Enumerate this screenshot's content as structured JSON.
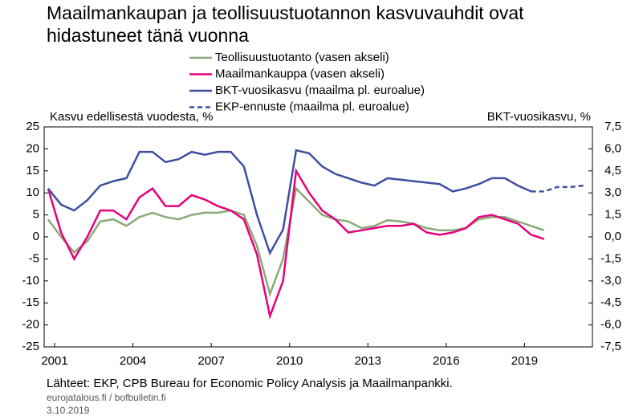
{
  "chart_data": {
    "type": "line",
    "title": "Maailmankaupan ja teollisuustuotannon kasvuvauhdit ovat hidastuneet tänä vuonna",
    "ylabel": "Kasvu edellisestä vuodesta, %",
    "y2label": "BKT-vuosikasvu, %",
    "source": "Lähteet: EKP, CPB Bureau for Economic Policy Analysis ja Maailmanpankki.",
    "site": "eurojatalous.fi  / bofbulletin.fi",
    "date": "3.10.2019",
    "x": [
      2000.75,
      2001.25,
      2001.75,
      2002.25,
      2002.75,
      2003.25,
      2003.75,
      2004.25,
      2004.75,
      2005.25,
      2005.75,
      2006.25,
      2006.75,
      2007.25,
      2007.75,
      2008.25,
      2008.75,
      2009.25,
      2009.75,
      2010.25,
      2010.75,
      2011.25,
      2011.75,
      2012.25,
      2012.75,
      2013.25,
      2013.75,
      2014.25,
      2014.75,
      2015.25,
      2015.75,
      2016.25,
      2016.75,
      2017.25,
      2017.75,
      2018.25,
      2018.75,
      2019.25,
      2019.75,
      2020.25,
      2020.75,
      2021.25
    ],
    "xlim": [
      2000.6,
      2021.6
    ],
    "xticks": [
      2001,
      2004,
      2007,
      2010,
      2013,
      2016,
      2019
    ],
    "ylim": [
      -25,
      25
    ],
    "yticks": [
      25,
      20,
      15,
      10,
      5,
      0,
      -5,
      -10,
      -15,
      -20,
      -25
    ],
    "y2lim": [
      -7.5,
      7.5
    ],
    "y2ticks": [
      {
        "value": 7.5,
        "label": "7,5"
      },
      {
        "value": 6,
        "label": "6,0"
      },
      {
        "value": 4.5,
        "label": "4,5"
      },
      {
        "value": 3,
        "label": "3,0"
      },
      {
        "value": 1.5,
        "label": "1,5"
      },
      {
        "value": 0,
        "label": "0,0"
      },
      {
        "value": -1.5,
        "label": "-1,5"
      },
      {
        "value": -3,
        "label": "-3,0"
      },
      {
        "value": -4.5,
        "label": "-4,5"
      },
      {
        "value": -6,
        "label": "-6,0"
      },
      {
        "value": -7.5,
        "label": "-7,5"
      }
    ],
    "series": [
      {
        "name": "Teollisuustuotanto (vasen akseli)",
        "color": "#8aab78",
        "axis": "y",
        "values": [
          4,
          0,
          -3.5,
          -1,
          3.5,
          4,
          2.5,
          4.5,
          5.5,
          4.5,
          4,
          5,
          5.5,
          5.5,
          6,
          5,
          -2,
          -13,
          -5,
          11,
          8,
          5,
          4,
          3.5,
          2,
          2.5,
          3.8,
          3.5,
          3,
          2,
          1.5,
          1.5,
          2,
          4,
          4.5,
          4.5,
          3.5,
          2.5,
          1.5,
          null,
          null,
          null
        ]
      },
      {
        "name": "Maailmankauppa (vasen akseli)",
        "color": "#e6007e",
        "axis": "y",
        "values": [
          11,
          1,
          -5,
          0,
          6,
          6,
          4,
          9,
          11,
          7,
          7,
          9.5,
          8.5,
          7,
          6,
          4,
          -4,
          -18,
          -10,
          15,
          10,
          6,
          4,
          1,
          1.5,
          2,
          2.5,
          2.5,
          3,
          1,
          0.5,
          1,
          2,
          4.5,
          5,
          4,
          3,
          0.5,
          -0.5,
          null,
          null,
          null
        ]
      },
      {
        "name": "BKT-vuosikasvu (maailma pl. euroalue)",
        "color": "#3f4fa0",
        "axis": "y2",
        "values": [
          3.3,
          2.2,
          1.8,
          2.5,
          3.5,
          3.8,
          4,
          5.8,
          5.8,
          5.1,
          5.3,
          5.8,
          5.6,
          5.8,
          5.8,
          4.8,
          1.5,
          -1.1,
          0.5,
          5.9,
          5.7,
          4.8,
          4.3,
          4,
          3.7,
          3.5,
          4,
          3.9,
          3.8,
          3.7,
          3.6,
          3.1,
          3.3,
          3.6,
          4,
          4,
          3.5,
          3.1,
          null,
          null,
          null,
          null
        ]
      },
      {
        "name": "EKP-ennuste (maailma pl. euroalue)",
        "color": "#3f4fa0",
        "axis": "y2",
        "dash": true,
        "values": [
          null,
          null,
          null,
          null,
          null,
          null,
          null,
          null,
          null,
          null,
          null,
          null,
          null,
          null,
          null,
          null,
          null,
          null,
          null,
          null,
          null,
          null,
          null,
          null,
          null,
          null,
          null,
          null,
          null,
          null,
          null,
          null,
          null,
          null,
          null,
          null,
          null,
          3.1,
          3.1,
          3.4,
          3.4,
          3.5
        ]
      }
    ]
  }
}
